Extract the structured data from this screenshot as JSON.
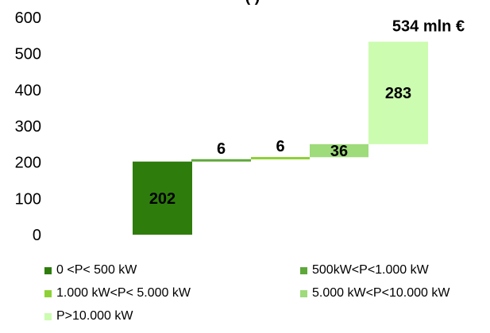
{
  "chart_data": {
    "type": "bar",
    "subtype": "waterfall",
    "title_fragment": "(          )",
    "categories": [
      "0 <P< 500 kW",
      "500kW<P<1.000 kW",
      "1.000 kW<P< 5.000 kW",
      "5.000 kW<P<10.000 kW",
      "P>10.000 kW"
    ],
    "values": [
      202,
      6,
      6,
      36,
      283
    ],
    "bar_labels": [
      "202",
      "6",
      "6",
      "36",
      "283"
    ],
    "total_label": "534 mln €",
    "ylim": [
      0,
      600
    ],
    "yticks": [
      "0",
      "100",
      "200",
      "300",
      "400",
      "500",
      "600"
    ],
    "xlabel": "",
    "ylabel": "",
    "grid": false,
    "legend_position": "bottom",
    "colors": [
      "#2e7d0c",
      "#5ea83a",
      "#8ed136",
      "#9edb7a",
      "#ccfcb0"
    ]
  }
}
